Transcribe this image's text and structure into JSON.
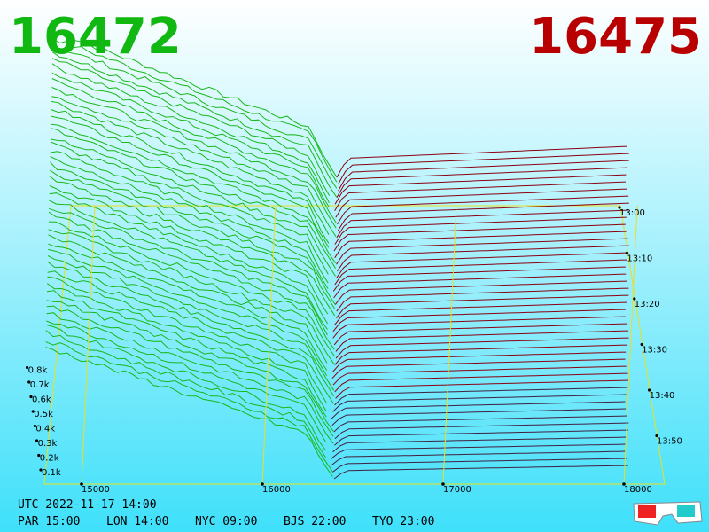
{
  "header": {
    "bid": "16472",
    "ask": "16475"
  },
  "price_axis": [
    "15000",
    "16000",
    "17000",
    "18000"
  ],
  "depth_axis": [
    "0.1k",
    "0.2k",
    "0.3k",
    "0.4k",
    "0.5k",
    "0.6k",
    "0.7k",
    "0.8k"
  ],
  "time_axis": [
    "13:00",
    "13:10",
    "13:20",
    "13:30",
    "13:40",
    "13:50"
  ],
  "footer": {
    "utc": "UTC 2022-11-17 14:00",
    "zones": [
      "PAR 15:00",
      "LON 14:00",
      "NYC 09:00",
      "BJS 22:00",
      "TYO 23:00"
    ]
  }
}
